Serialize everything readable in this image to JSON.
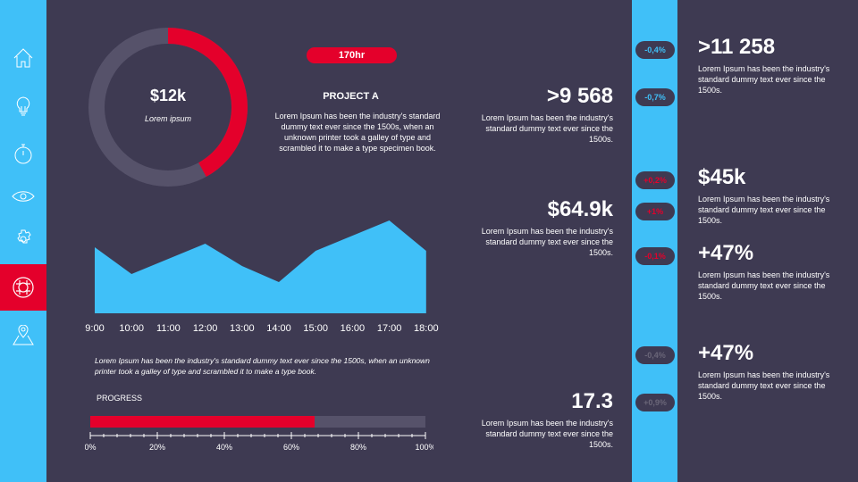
{
  "colors": {
    "accent_blue": "#40c0f8",
    "accent_red": "#e4002b",
    "background": "#3e3a52",
    "track": "#56526a"
  },
  "sidebar": {
    "items": [
      {
        "icon": "home-icon"
      },
      {
        "icon": "lightbulb-icon"
      },
      {
        "icon": "stopwatch-icon"
      },
      {
        "icon": "eye-icon"
      },
      {
        "icon": "gear-icon"
      },
      {
        "icon": "lifebuoy-icon",
        "active": true
      },
      {
        "icon": "map-pin-icon"
      }
    ]
  },
  "donut": {
    "value": "$12k",
    "label": "Lorem ipsum",
    "fraction": 0.42
  },
  "project": {
    "badge": "170hr",
    "title": "PROJECT A",
    "text": "Lorem Ipsum has been the industry's standard dummy text ever since the 1500s, when an unknown printer took a galley  of type and scrambled it to make a type specimen  book."
  },
  "chart_data": {
    "type": "area",
    "categories": [
      "9:00",
      "10:00",
      "11:00",
      "12:00",
      "13:00",
      "14:00",
      "15:00",
      "16:00",
      "17:00",
      "18:00"
    ],
    "values": [
      74,
      44,
      61,
      78,
      53,
      35,
      70,
      87,
      104,
      70
    ],
    "grid": false
  },
  "caption": "Lorem Ipsum  has been the industry's standard dummy text ever since the 1500s, when an unknown  printer took a galley  of type and scrambled it to make a type book.",
  "progress": {
    "label": "PROGRESS",
    "value": 0.67,
    "ticks": [
      "0%",
      "20%",
      "40%",
      "60%",
      "80%",
      "100%"
    ]
  },
  "middle_stats": [
    {
      "value": ">9 568",
      "text": "Lorem Ipsum has been the industry's standard dummy text ever since the 1500s."
    },
    {
      "value": "$64.9k",
      "text": "Lorem Ipsum has been the industry's standard dummy text ever since the 1500s."
    },
    {
      "value": "17.3",
      "text": "Lorem Ipsum has been the industry's standard dummy text ever since the 1500s."
    }
  ],
  "right_stats": [
    {
      "value": ">11 258",
      "text": "Lorem Ipsum has been the industry's standard dummy text ever since the 1500s."
    },
    {
      "value": "$45k",
      "text": "Lorem Ipsum has been the industry's standard dummy text ever since the 1500s."
    },
    {
      "value": "+47%",
      "text": "Lorem Ipsum has been the industry's standard dummy text ever since the 1500s."
    },
    {
      "value": "+47%",
      "text": "Lorem Ipsum has been the industry's standard dummy text ever since the 1500s."
    }
  ],
  "pills": [
    {
      "text": "-0,4%",
      "color": "#40c0f8"
    },
    {
      "text": "-0,7%",
      "color": "#40c0f8"
    },
    {
      "text": "+0,2%",
      "color": "#e4002b"
    },
    {
      "text": "+1%",
      "color": "#e4002b"
    },
    {
      "text": "-0,1%",
      "color": "#e4002b"
    },
    {
      "text": "-0,4%",
      "color": "#6a6678"
    },
    {
      "text": "+0,9%",
      "color": "#6a6678"
    }
  ]
}
